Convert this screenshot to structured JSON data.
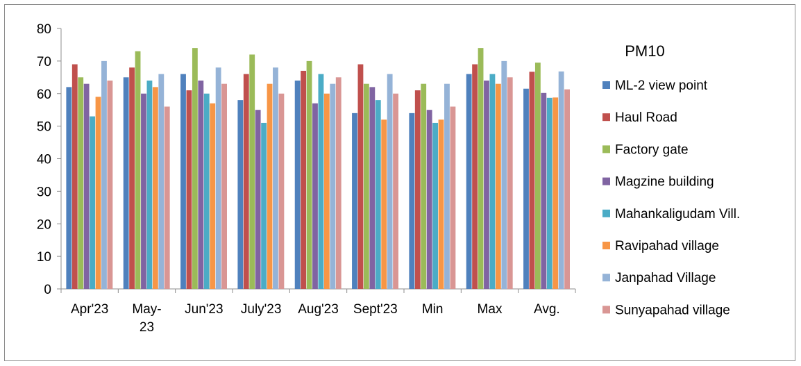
{
  "chart_data": {
    "type": "bar",
    "title": "PM10",
    "xlabel": "",
    "ylabel": "",
    "ylim": [
      0,
      80
    ],
    "yticks": [
      "0",
      "10",
      "20",
      "30",
      "40",
      "50",
      "60",
      "70",
      "80"
    ],
    "grid": false,
    "legend_position": "right",
    "categories": [
      "Apr'23",
      "May-23",
      "Jun'23",
      "July'23",
      "Aug'23",
      "Sept'23",
      "Min",
      "Max",
      "Avg."
    ],
    "series": [
      {
        "name": "ML-2 view point",
        "color": "#4f81bd",
        "values": [
          62,
          65,
          66,
          58,
          64,
          54,
          54,
          66,
          61.5
        ]
      },
      {
        "name": "Haul Road",
        "color": "#c0504d",
        "values": [
          69,
          68,
          61,
          66,
          67,
          69,
          61,
          69,
          66.7
        ]
      },
      {
        "name": "Factory gate",
        "color": "#9bbb59",
        "values": [
          65,
          73,
          74,
          72,
          70,
          63,
          63,
          74,
          69.5
        ]
      },
      {
        "name": "Magzine building",
        "color": "#8064a2",
        "values": [
          63,
          60,
          64,
          55,
          57,
          62,
          55,
          64,
          60.2
        ]
      },
      {
        "name": "Mahankaligudam Vill.",
        "color": "#4bacc6",
        "values": [
          53,
          64,
          60,
          51,
          66,
          58,
          51,
          66,
          58.7
        ]
      },
      {
        "name": "Ravipahad village",
        "color": "#f79646",
        "values": [
          59,
          62,
          57,
          63,
          60,
          52,
          52,
          63,
          58.8
        ]
      },
      {
        "name": "Janpahad Village",
        "color": "#95b3d7",
        "values": [
          70,
          66,
          68,
          68,
          63,
          66,
          63,
          70,
          66.8
        ]
      },
      {
        "name": "Sunyapahad village",
        "color": "#d99694",
        "values": [
          64,
          56,
          63,
          60,
          65,
          60,
          56,
          65,
          61.3
        ]
      }
    ]
  }
}
